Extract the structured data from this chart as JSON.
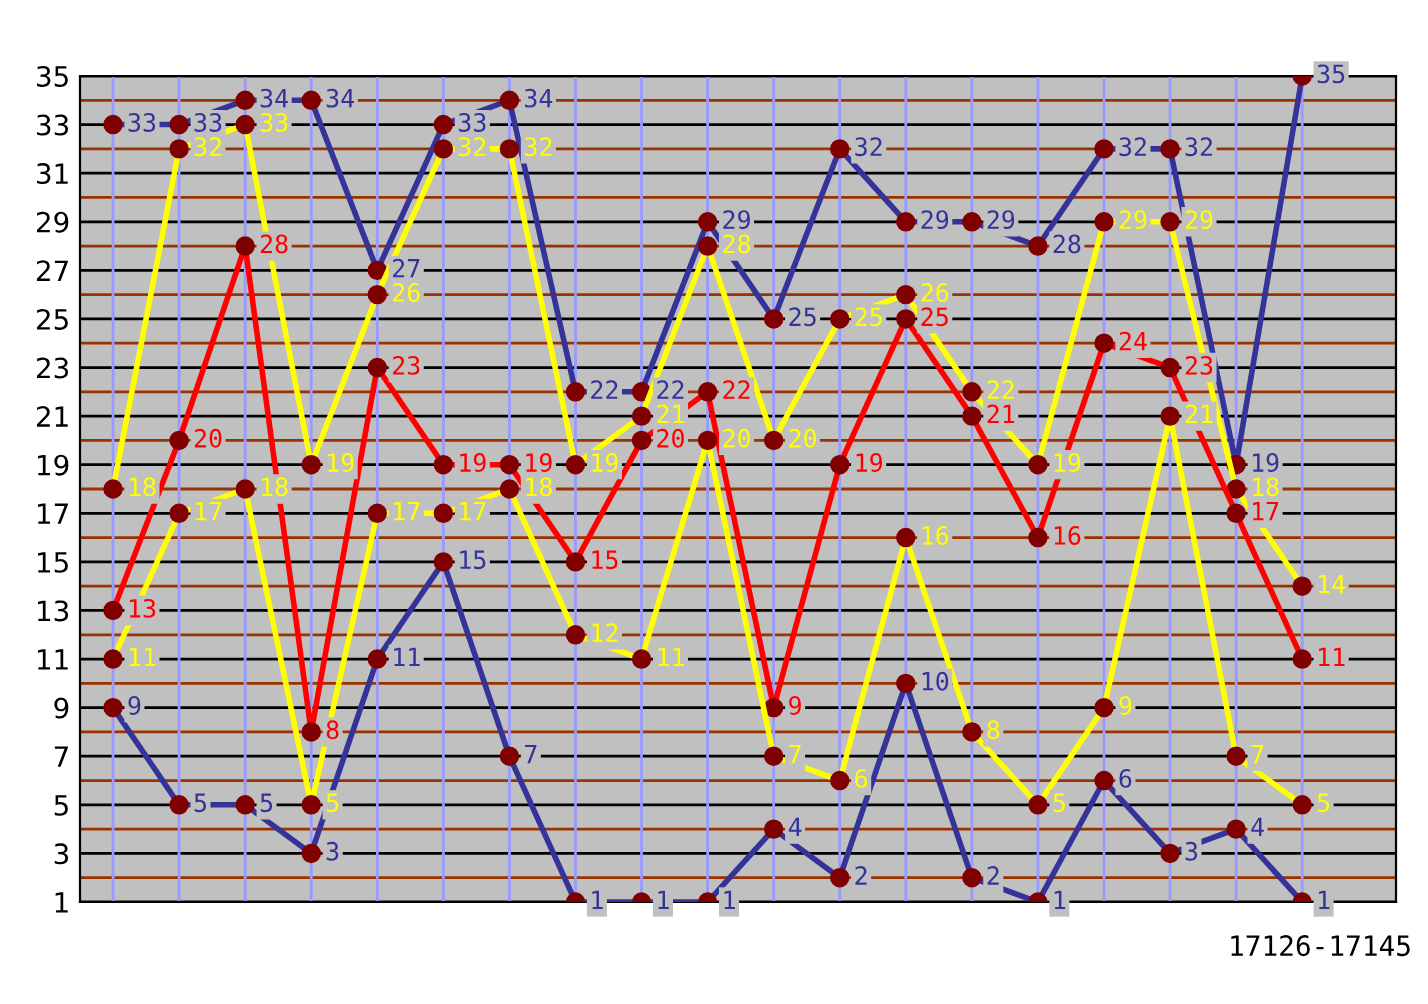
{
  "chart_data": {
    "type": "line",
    "categories": [
      null,
      null,
      null,
      null,
      null,
      null,
      null,
      null,
      null,
      null,
      null,
      null,
      null,
      null,
      null,
      null,
      null,
      null,
      null
    ],
    "series": [
      {
        "color": "#333399",
        "values": [
          33,
          33,
          34,
          34,
          27,
          33,
          34,
          22,
          22,
          29,
          25,
          32,
          29,
          29,
          28,
          32,
          32,
          19,
          35
        ]
      },
      {
        "color": "#ffff00",
        "values": [
          18,
          32,
          33,
          19,
          26,
          32,
          32,
          19,
          21,
          28,
          20,
          25,
          26,
          22,
          19,
          29,
          29,
          18,
          14
        ]
      },
      {
        "color": "#ff0000",
        "values": [
          13,
          20,
          28,
          8,
          23,
          19,
          19,
          15,
          20,
          22,
          9,
          19,
          25,
          21,
          16,
          24,
          23,
          17,
          11
        ]
      },
      {
        "color": "#ffff00",
        "values": [
          11,
          17,
          18,
          5,
          17,
          17,
          18,
          12,
          11,
          20,
          7,
          6,
          16,
          8,
          5,
          9,
          21,
          7,
          5
        ]
      },
      {
        "color": "#333399",
        "values": [
          9,
          5,
          5,
          3,
          11,
          15,
          7,
          1,
          1,
          1,
          4,
          2,
          10,
          2,
          1,
          6,
          3,
          4,
          1
        ]
      }
    ],
    "ylim": [
      1,
      35
    ],
    "yticks": [
      1,
      {
        "value": 2,
        "label": null
      },
      3,
      {
        "value": 4,
        "label": null
      },
      5,
      {
        "value": 6,
        "label": null
      },
      7,
      {
        "value": 8,
        "label": null
      },
      9,
      {
        "value": 10,
        "label": null
      },
      11,
      {
        "value": 12,
        "label": null
      },
      13,
      {
        "value": 14,
        "label": null
      },
      15,
      {
        "value": 16,
        "label": null
      },
      17,
      {
        "value": 18,
        "label": null
      },
      19,
      {
        "value": 20,
        "label": null
      },
      21,
      {
        "value": 22,
        "label": null
      },
      23,
      {
        "value": 24,
        "label": null
      },
      25,
      {
        "value": 26,
        "label": null
      },
      27,
      {
        "value": 28,
        "label": null
      },
      29,
      {
        "value": 30,
        "label": null
      },
      31,
      {
        "value": 32,
        "label": null
      },
      33,
      {
        "value": 34,
        "label": null
      },
      35
    ],
    "grid": true,
    "marker": "circle",
    "line_style": "solid",
    "data_labels": true,
    "legend": false,
    "annotations": [
      "17126-17145"
    ]
  }
}
